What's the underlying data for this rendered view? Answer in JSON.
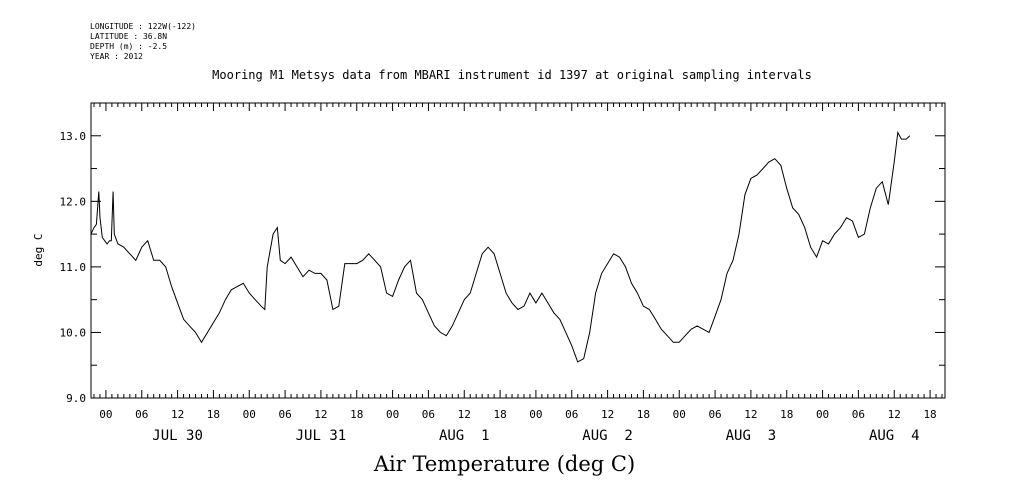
{
  "meta": {
    "longitude": "LONGITUDE : 122W(-122)",
    "latitude": "LATITUDE : 36.8N",
    "depth": "DEPTH (m) : -2.5",
    "year": "YEAR : 2012"
  },
  "chart_data": {
    "type": "line",
    "title": "Mooring M1 Metsys data from MBARI instrument id 1397 at original sampling intervals",
    "xlabel": "Air Temperature (deg C)",
    "ylabel": "deg C",
    "ylim": [
      9.0,
      13.5
    ],
    "yticks": [
      "9.0",
      "10.0",
      "11.0",
      "12.0",
      "13.0"
    ],
    "xlim_hours": [
      -2.5,
      140.5
    ],
    "hour_tick_labels": [
      "00",
      "06",
      "12",
      "18"
    ],
    "day_labels": [
      "JUL 30",
      "JUL 31",
      "AUG  1",
      "AUG  2",
      "AUG  3",
      "AUG  4"
    ],
    "x_unit": "hours since 2012-07-30 00:00",
    "series": [
      {
        "values": [
          [
            -2.5,
            11.5
          ],
          [
            -2.0,
            11.6
          ],
          [
            -1.6,
            11.65
          ],
          [
            -1.2,
            12.15
          ],
          [
            -1.0,
            11.75
          ],
          [
            -0.6,
            11.45
          ],
          [
            -0.2,
            11.4
          ],
          [
            0.2,
            11.35
          ],
          [
            0.6,
            11.4
          ],
          [
            0.9,
            11.4
          ],
          [
            1.2,
            12.15
          ],
          [
            1.4,
            11.5
          ],
          [
            2.0,
            11.35
          ],
          [
            3.0,
            11.3
          ],
          [
            4.0,
            11.2
          ],
          [
            5.0,
            11.1
          ],
          [
            6.0,
            11.3
          ],
          [
            7.0,
            11.4
          ],
          [
            8.0,
            11.1
          ],
          [
            9.0,
            11.1
          ],
          [
            10.0,
            11.0
          ],
          [
            11.0,
            10.7
          ],
          [
            12.0,
            10.45
          ],
          [
            13.0,
            10.2
          ],
          [
            14.0,
            10.1
          ],
          [
            15.0,
            10.0
          ],
          [
            16.0,
            9.85
          ],
          [
            17.0,
            10.0
          ],
          [
            18.0,
            10.15
          ],
          [
            19.0,
            10.3
          ],
          [
            20.0,
            10.5
          ],
          [
            21.0,
            10.65
          ],
          [
            22.0,
            10.7
          ],
          [
            23.0,
            10.75
          ],
          [
            24.0,
            10.6
          ],
          [
            25.0,
            10.5
          ],
          [
            26.0,
            10.4
          ],
          [
            26.6,
            10.35
          ],
          [
            27.0,
            11.0
          ],
          [
            28.0,
            11.5
          ],
          [
            28.7,
            11.6
          ],
          [
            29.2,
            11.1
          ],
          [
            30.0,
            11.05
          ],
          [
            31.0,
            11.15
          ],
          [
            32.0,
            11.0
          ],
          [
            33.0,
            10.85
          ],
          [
            34.0,
            10.95
          ],
          [
            35.0,
            10.9
          ],
          [
            36.0,
            10.9
          ],
          [
            37.0,
            10.8
          ],
          [
            38.0,
            10.35
          ],
          [
            39.0,
            10.4
          ],
          [
            40.0,
            11.05
          ],
          [
            41.0,
            11.05
          ],
          [
            42.0,
            11.05
          ],
          [
            43.0,
            11.1
          ],
          [
            44.0,
            11.2
          ],
          [
            45.0,
            11.1
          ],
          [
            46.0,
            11.0
          ],
          [
            47.0,
            10.6
          ],
          [
            48.0,
            10.55
          ],
          [
            49.0,
            10.8
          ],
          [
            50.0,
            11.0
          ],
          [
            51.0,
            11.1
          ],
          [
            52.0,
            10.6
          ],
          [
            53.0,
            10.5
          ],
          [
            54.0,
            10.3
          ],
          [
            55.0,
            10.1
          ],
          [
            56.0,
            10.0
          ],
          [
            57.0,
            9.95
          ],
          [
            58.0,
            10.1
          ],
          [
            59.0,
            10.3
          ],
          [
            60.0,
            10.5
          ],
          [
            61.0,
            10.6
          ],
          [
            62.0,
            10.9
          ],
          [
            63.0,
            11.2
          ],
          [
            64.0,
            11.3
          ],
          [
            65.0,
            11.2
          ],
          [
            66.0,
            10.9
          ],
          [
            67.0,
            10.6
          ],
          [
            68.0,
            10.45
          ],
          [
            69.0,
            10.35
          ],
          [
            70.0,
            10.4
          ],
          [
            71.0,
            10.6
          ],
          [
            72.0,
            10.45
          ],
          [
            73.0,
            10.6
          ],
          [
            74.0,
            10.45
          ],
          [
            75.0,
            10.3
          ],
          [
            76.0,
            10.2
          ],
          [
            77.0,
            10.0
          ],
          [
            78.0,
            9.8
          ],
          [
            79.0,
            9.55
          ],
          [
            80.0,
            9.6
          ],
          [
            81.0,
            10.0
          ],
          [
            82.0,
            10.6
          ],
          [
            83.0,
            10.9
          ],
          [
            84.0,
            11.05
          ],
          [
            85.0,
            11.2
          ],
          [
            86.0,
            11.15
          ],
          [
            87.0,
            11.0
          ],
          [
            88.0,
            10.75
          ],
          [
            89.0,
            10.6
          ],
          [
            90.0,
            10.4
          ],
          [
            91.0,
            10.35
          ],
          [
            92.0,
            10.2
          ],
          [
            93.0,
            10.05
          ],
          [
            94.0,
            9.95
          ],
          [
            95.0,
            9.85
          ],
          [
            96.0,
            9.85
          ],
          [
            97.0,
            9.95
          ],
          [
            98.0,
            10.05
          ],
          [
            99.0,
            10.1
          ],
          [
            100.0,
            10.05
          ],
          [
            101.0,
            10.0
          ],
          [
            102.0,
            10.25
          ],
          [
            103.0,
            10.5
          ],
          [
            104.0,
            10.9
          ],
          [
            105.0,
            11.1
          ],
          [
            106.0,
            11.5
          ],
          [
            107.0,
            12.1
          ],
          [
            108.0,
            12.35
          ],
          [
            109.0,
            12.4
          ],
          [
            110.0,
            12.5
          ],
          [
            111.0,
            12.6
          ],
          [
            112.0,
            12.65
          ],
          [
            113.0,
            12.55
          ],
          [
            114.0,
            12.2
          ],
          [
            115.0,
            11.9
          ],
          [
            116.0,
            11.8
          ],
          [
            117.0,
            11.6
          ],
          [
            118.0,
            11.3
          ],
          [
            119.0,
            11.15
          ],
          [
            120.0,
            11.4
          ],
          [
            121.0,
            11.35
          ],
          [
            122.0,
            11.5
          ],
          [
            123.0,
            11.6
          ],
          [
            124.0,
            11.75
          ],
          [
            125.0,
            11.7
          ],
          [
            126.0,
            11.45
          ],
          [
            127.0,
            11.5
          ],
          [
            128.0,
            11.9
          ],
          [
            129.0,
            12.2
          ],
          [
            130.0,
            12.3
          ],
          [
            131.0,
            11.95
          ],
          [
            132.0,
            12.6
          ],
          [
            132.6,
            13.05
          ],
          [
            133.2,
            12.95
          ],
          [
            134.0,
            12.95
          ],
          [
            134.6,
            13.0
          ]
        ]
      }
    ]
  }
}
